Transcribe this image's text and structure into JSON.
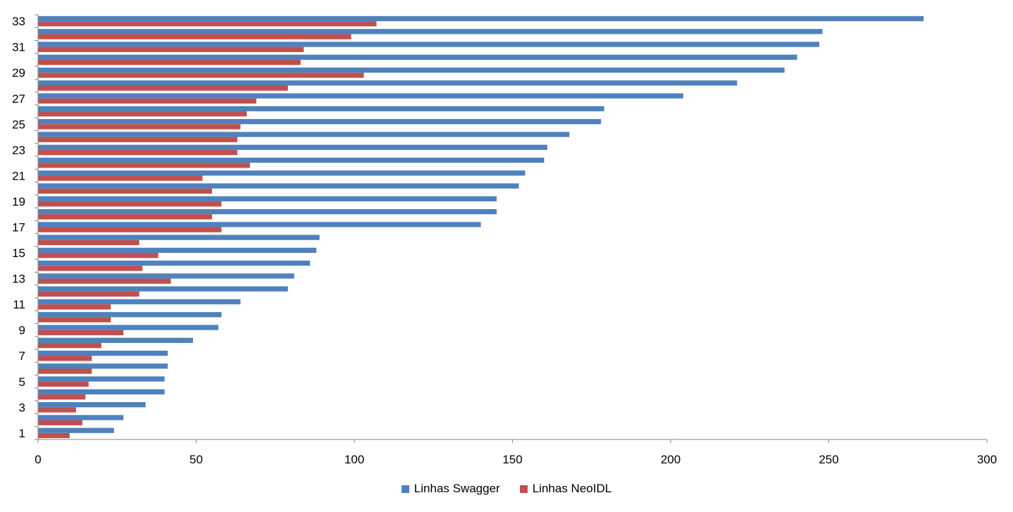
{
  "chart_data": {
    "type": "bar",
    "orientation": "horizontal",
    "categories": [
      "1",
      "2",
      "3",
      "4",
      "5",
      "6",
      "7",
      "8",
      "9",
      "10",
      "11",
      "12",
      "13",
      "14",
      "15",
      "16",
      "17",
      "18",
      "19",
      "20",
      "21",
      "22",
      "23",
      "24",
      "25",
      "26",
      "27",
      "28",
      "29",
      "30",
      "31",
      "32",
      "33"
    ],
    "y_tick_labels": [
      "1",
      "3",
      "5",
      "7",
      "9",
      "11",
      "13",
      "15",
      "17",
      "19",
      "21",
      "23",
      "25",
      "27",
      "29",
      "31",
      "33"
    ],
    "series": [
      {
        "name": "Linhas Swagger",
        "color": "#4F81BD",
        "values": [
          24,
          27,
          34,
          40,
          40,
          41,
          41,
          49,
          57,
          58,
          64,
          79,
          81,
          86,
          88,
          89,
          140,
          145,
          145,
          152,
          154,
          160,
          161,
          168,
          178,
          179,
          204,
          221,
          236,
          240,
          247,
          248,
          280
        ]
      },
      {
        "name": "Linhas NeoIDL",
        "color": "#C0504D",
        "values": [
          10,
          14,
          12,
          15,
          16,
          17,
          17,
          20,
          27,
          23,
          23,
          32,
          42,
          33,
          38,
          32,
          58,
          55,
          58,
          55,
          52,
          67,
          63,
          63,
          64,
          66,
          69,
          79,
          103,
          83,
          84,
          99,
          107
        ]
      }
    ],
    "x_ticks": [
      "0",
      "50",
      "100",
      "150",
      "200",
      "250",
      "300"
    ],
    "xlim": [
      0,
      300
    ],
    "grid": false,
    "legend_position": "bottom"
  }
}
